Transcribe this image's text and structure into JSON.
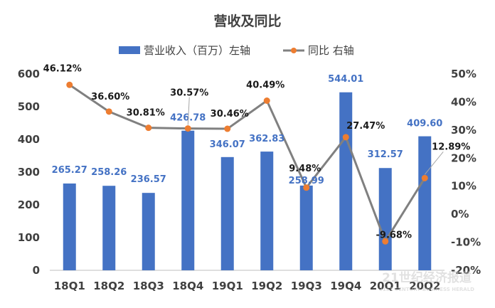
{
  "chart_data": {
    "type": "bar+line",
    "title": "营收及同比",
    "categories": [
      "18Q1",
      "18Q2",
      "18Q3",
      "18Q4",
      "19Q1",
      "19Q2",
      "19Q3",
      "19Q4",
      "20Q1",
      "20Q2"
    ],
    "series": [
      {
        "name": "营业收入（百万）左轴",
        "type": "bar",
        "axis": "left",
        "color": "#4472C4",
        "values": [
          265.27,
          258.26,
          236.57,
          426.78,
          346.07,
          362.83,
          258.99,
          544.01,
          312.57,
          409.6
        ],
        "labels": [
          "265.27",
          "258.26",
          "236.57",
          "426.78",
          "346.07",
          "362.83",
          "258.99",
          "544.01",
          "312.57",
          "409.60"
        ]
      },
      {
        "name": "同比 右轴",
        "type": "line",
        "axis": "right",
        "color": "#808080",
        "marker_color": "#ED7D31",
        "values": [
          46.12,
          36.6,
          30.81,
          30.57,
          30.46,
          40.49,
          9.48,
          27.47,
          -9.68,
          12.89
        ],
        "labels": [
          "46.12%",
          "36.60%",
          "30.81%",
          "30.57%",
          "30.46%",
          "40.49%",
          "9.48%",
          "27.47%",
          "-9.68%",
          "12.89%"
        ]
      }
    ],
    "y_left": {
      "min": 0,
      "max": 600,
      "ticks": [
        0,
        100,
        200,
        300,
        400,
        500,
        600
      ],
      "tick_labels": [
        "0",
        "100",
        "200",
        "300",
        "400",
        "500",
        "600"
      ]
    },
    "y_right": {
      "min": -20,
      "max": 50,
      "ticks": [
        -20,
        -10,
        0,
        10,
        20,
        30,
        40,
        50
      ],
      "tick_labels": [
        "-20%",
        "-10%",
        "0%",
        "10%",
        "20%",
        "30%",
        "40%",
        "50%"
      ]
    },
    "grid": false,
    "legend_position": "top"
  },
  "watermark": {
    "text": "21世纪经济报道",
    "subtext": "21ST CENTURY BUSINESS HERALD"
  }
}
